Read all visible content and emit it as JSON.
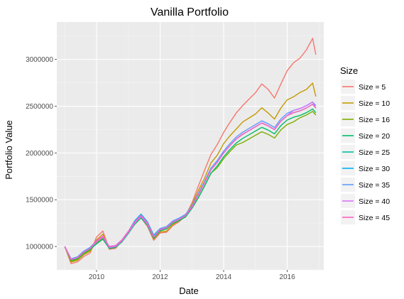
{
  "chart_data": {
    "type": "line",
    "title": "Vanilla Portfolio",
    "xlabel": "Date",
    "ylabel": "Portfolio Value",
    "x_range": [
      2008.75,
      2017.15
    ],
    "y_range": [
      750000,
      3400000
    ],
    "x_ticks": [
      2010,
      2012,
      2014,
      2016
    ],
    "x_tick_labels": [
      "2010",
      "2012",
      "2014",
      "2016"
    ],
    "y_ticks": [
      1000000,
      1500000,
      2000000,
      2500000,
      3000000
    ],
    "y_tick_labels": [
      "1000000",
      "1500000",
      "2000000",
      "2500000",
      "3000000"
    ],
    "grid": true,
    "legend_title": "Size",
    "legend_position": "right",
    "base_series": {
      "x": [
        2009.0,
        2009.2,
        2009.4,
        2009.6,
        2009.8,
        2010.0,
        2010.2,
        2010.4,
        2010.6,
        2010.8,
        2011.0,
        2011.2,
        2011.4,
        2011.6,
        2011.8,
        2012.0,
        2012.2,
        2012.4,
        2012.6,
        2012.8,
        2013.0,
        2013.2,
        2013.4,
        2013.6,
        2013.8,
        2014.0,
        2014.2,
        2014.4,
        2014.6,
        2014.8,
        2015.0,
        2015.2,
        2015.4,
        2015.6,
        2015.8,
        2016.0,
        2016.2,
        2016.4,
        2016.6,
        2016.8,
        2016.9
      ],
      "y": [
        1000000,
        860000,
        880000,
        940000,
        980000,
        1050000,
        1100000,
        990000,
        1000000,
        1060000,
        1150000,
        1250000,
        1320000,
        1240000,
        1100000,
        1180000,
        1200000,
        1260000,
        1290000,
        1330000,
        1420000,
        1550000,
        1680000,
        1820000,
        1900000,
        2000000,
        2080000,
        2150000,
        2200000,
        2240000,
        2280000,
        2320000,
        2290000,
        2250000,
        2340000,
        2400000,
        2430000,
        2450000,
        2480000,
        2520000,
        2480000
      ]
    },
    "series": [
      {
        "name": "Size = 5",
        "color": "#F8766D",
        "scale": [
          1.0,
          0.95,
          0.95,
          0.95,
          0.95,
          1.05,
          1.06,
          0.98,
          0.98,
          1.0,
          1.0,
          0.99,
          0.99,
          0.98,
          0.97,
          0.97,
          0.96,
          0.97,
          0.98,
          1.0,
          1.03,
          1.06,
          1.08,
          1.09,
          1.1,
          1.11,
          1.12,
          1.13,
          1.14,
          1.15,
          1.16,
          1.18,
          1.17,
          1.15,
          1.17,
          1.2,
          1.22,
          1.23,
          1.25,
          1.28,
          1.23
        ]
      },
      {
        "name": "Size = 10",
        "color": "#C49A00",
        "scale": [
          1.0,
          0.97,
          0.97,
          0.97,
          0.97,
          1.02,
          1.03,
          0.99,
          0.99,
          1.0,
          1.0,
          0.99,
          0.99,
          0.99,
          0.98,
          0.98,
          0.97,
          0.98,
          0.99,
          1.0,
          1.02,
          1.03,
          1.03,
          1.04,
          1.04,
          1.05,
          1.05,
          1.05,
          1.06,
          1.06,
          1.06,
          1.07,
          1.06,
          1.05,
          1.06,
          1.07,
          1.07,
          1.08,
          1.08,
          1.09,
          1.05
        ]
      },
      {
        "name": "Size = 16",
        "color": "#7CAE00",
        "scale": [
          1.0,
          0.98,
          0.98,
          0.98,
          0.98,
          0.99,
          0.99,
          0.99,
          0.99,
          1.0,
          1.0,
          0.99,
          0.99,
          0.99,
          0.99,
          0.99,
          0.99,
          0.99,
          0.99,
          0.99,
          0.99,
          0.98,
          0.98,
          0.98,
          0.97,
          0.97,
          0.97,
          0.97,
          0.96,
          0.96,
          0.96,
          0.96,
          0.96,
          0.96,
          0.96,
          0.96,
          0.96,
          0.97,
          0.97,
          0.97,
          0.97
        ]
      },
      {
        "name": "Size = 20",
        "color": "#00BE67",
        "scale": [
          1.0,
          0.99,
          0.99,
          0.99,
          0.99,
          0.98,
          0.98,
          0.99,
          0.99,
          0.99,
          0.99,
          0.99,
          0.99,
          0.99,
          0.99,
          0.99,
          0.99,
          0.99,
          0.99,
          0.99,
          0.99,
          0.98,
          0.98,
          0.98,
          0.98,
          0.98,
          0.98,
          0.98,
          0.98,
          0.98,
          0.98,
          0.98,
          0.98,
          0.98,
          0.98,
          0.98,
          0.98,
          0.98,
          0.98,
          0.98,
          0.98
        ]
      },
      {
        "name": "Size = 25",
        "color": "#00BFA0",
        "scale": [
          1.0,
          1.0,
          1.0,
          1.0,
          1.0,
          1.0,
          1.0,
          1.0,
          1.0,
          1.0,
          1.0,
          1.0,
          1.0,
          1.0,
          1.0,
          1.0,
          1.0,
          1.0,
          1.0,
          1.0,
          1.0,
          1.0,
          1.0,
          1.0,
          1.0,
          1.0,
          1.0,
          1.0,
          1.0,
          1.0,
          1.0,
          1.0,
          1.0,
          1.0,
          1.0,
          1.0,
          1.0,
          1.0,
          1.0,
          1.0,
          1.0
        ]
      },
      {
        "name": "Size = 30",
        "color": "#00B0F6",
        "scale": [
          1.0,
          1.01,
          1.01,
          1.01,
          1.01,
          1.01,
          1.01,
          1.01,
          1.01,
          1.01,
          1.01,
          1.02,
          1.02,
          1.02,
          1.02,
          1.01,
          1.01,
          1.01,
          1.01,
          1.01,
          1.0,
          1.0,
          1.0,
          1.0,
          1.0,
          1.0,
          1.0,
          1.0,
          1.0,
          1.0,
          1.0,
          1.0,
          1.0,
          1.0,
          1.0,
          1.0,
          1.01,
          1.01,
          1.01,
          1.01,
          1.01
        ]
      },
      {
        "name": "Size = 35",
        "color": "#619CFF",
        "scale": [
          1.0,
          1.01,
          1.01,
          1.01,
          1.01,
          1.01,
          1.01,
          1.01,
          1.01,
          1.01,
          1.01,
          1.01,
          1.01,
          1.01,
          1.01,
          1.01,
          1.01,
          1.01,
          1.01,
          1.01,
          1.01,
          1.01,
          1.01,
          1.01,
          1.01,
          1.01,
          1.01,
          1.01,
          1.01,
          1.01,
          1.01,
          1.01,
          1.01,
          1.01,
          1.01,
          1.01,
          1.01,
          1.01,
          1.01,
          1.01,
          1.01
        ]
      },
      {
        "name": "Size = 40",
        "color": "#DB72FB",
        "scale": [
          1.0,
          1.0,
          1.0,
          1.0,
          1.0,
          1.0,
          1.0,
          1.0,
          1.0,
          1.0,
          1.0,
          1.0,
          1.0,
          1.0,
          1.0,
          1.0,
          1.0,
          1.0,
          1.0,
          1.0,
          1.0,
          1.0,
          1.0,
          1.0,
          1.0,
          1.0,
          1.0,
          1.0,
          1.0,
          1.0,
          1.0,
          1.0,
          1.0,
          1.0,
          1.0,
          1.0,
          1.01,
          1.01,
          1.01,
          1.01,
          1.0
        ]
      },
      {
        "name": "Size = 45",
        "color": "#FF61C3",
        "scale": [
          1.0,
          1.0,
          1.0,
          1.0,
          1.0,
          1.01,
          1.01,
          1.01,
          1.01,
          1.01,
          1.01,
          1.01,
          1.01,
          1.01,
          1.0,
          1.0,
          1.0,
          1.0,
          1.0,
          1.0,
          1.0,
          1.0,
          1.0,
          1.0,
          1.0,
          1.0,
          1.0,
          1.0,
          1.0,
          1.0,
          1.0,
          1.0,
          1.0,
          1.0,
          1.0,
          1.0,
          1.0,
          1.0,
          1.0,
          1.0,
          1.0
        ]
      }
    ]
  }
}
